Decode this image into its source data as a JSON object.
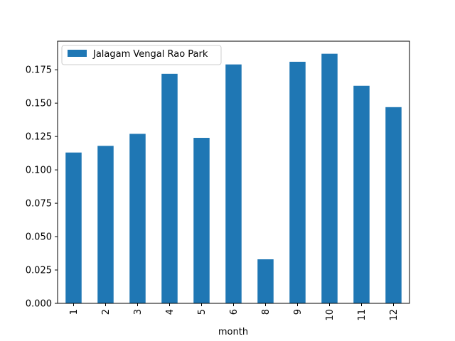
{
  "chart_data": {
    "type": "bar",
    "categories": [
      "1",
      "2",
      "3",
      "4",
      "5",
      "6",
      "8",
      "9",
      "10",
      "11",
      "12"
    ],
    "series": [
      {
        "name": "Jalagam Vengal Rao Park",
        "values": [
          0.113,
          0.118,
          0.127,
          0.172,
          0.124,
          0.179,
          0.033,
          0.181,
          0.187,
          0.163,
          0.147
        ],
        "color": "#1f77b4"
      }
    ],
    "xlabel": "month",
    "ylabel": "",
    "ylim": [
      0,
      0.1964
    ],
    "yticks": [
      "0.000",
      "0.025",
      "0.050",
      "0.075",
      "0.100",
      "0.125",
      "0.150",
      "0.175"
    ],
    "ytick_values": [
      0,
      0.025,
      0.05,
      0.075,
      0.1,
      0.125,
      0.15,
      0.175
    ],
    "grid": false,
    "legend_position": "upper-left"
  }
}
